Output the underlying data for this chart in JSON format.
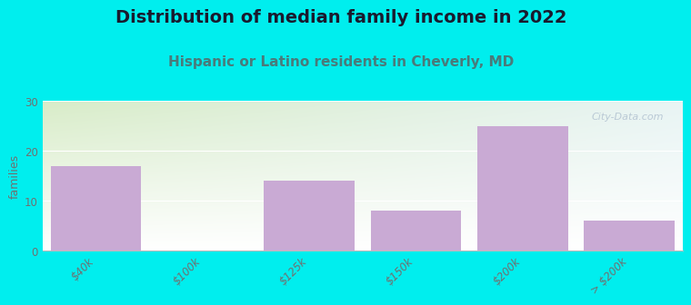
{
  "title": "Distribution of median family income in 2022",
  "subtitle": "Hispanic or Latino residents in Cheverly, MD",
  "values": [
    17,
    0,
    14,
    8,
    25,
    6
  ],
  "bar_color": "#c9aad4",
  "ylim": [
    0,
    30
  ],
  "yticks": [
    0,
    10,
    20,
    30
  ],
  "ylabel": "families",
  "background_color": "#00eeee",
  "title_fontsize": 14,
  "subtitle_fontsize": 11,
  "title_color": "#1a1a2e",
  "subtitle_color": "#4a7a7a",
  "tick_label_color": "#707070",
  "watermark": "City-Data.com",
  "bar_width": 0.85,
  "tick_labels": [
    "$40k",
    "$100k",
    "$125k",
    "$150k",
    "$200k",
    "> $200k"
  ],
  "grid_color": "#e8e8e8",
  "plot_bg_left_top": "#d8ecc8",
  "plot_bg_right_bottom": "#eaf4f4"
}
